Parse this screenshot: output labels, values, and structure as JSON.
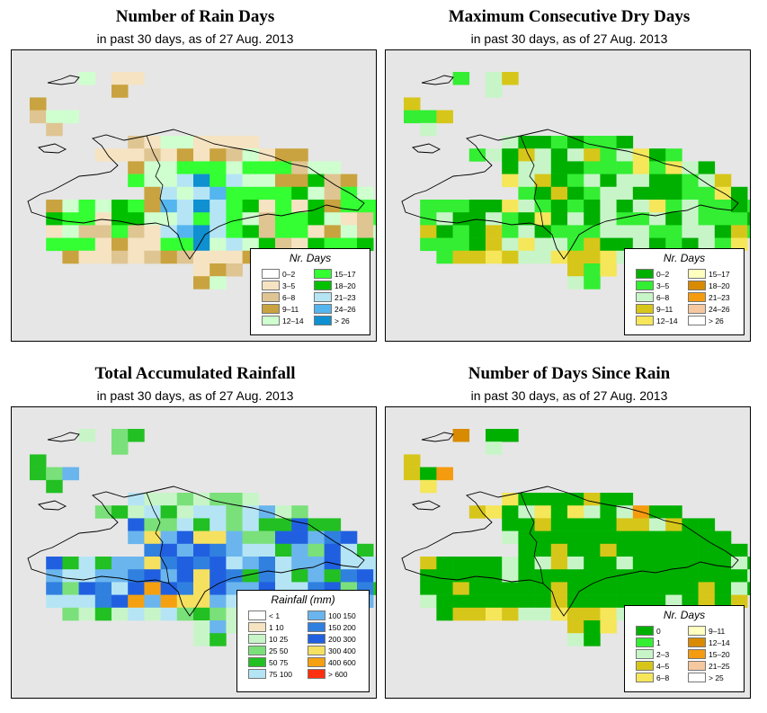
{
  "panels": [
    {
      "title": "Number of Rain Days",
      "subtitle": "in past 30 days, as of  27 Aug. 2013",
      "legend": {
        "title": "Nr. Days",
        "items": [
          {
            "label": "0–2",
            "color": "#ffffff"
          },
          {
            "label": "3–5",
            "color": "#f5e3c2"
          },
          {
            "label": "6–8",
            "color": "#dfc592"
          },
          {
            "label": "9–11",
            "color": "#c9a33f"
          },
          {
            "label": "12–14",
            "color": "#cfffcf"
          },
          {
            "label": "15–17",
            "color": "#33ff33"
          },
          {
            "label": "18–20",
            "color": "#00c000"
          },
          {
            "label": "21–23",
            "color": "#b5e5f5"
          },
          {
            "label": "24–26",
            "color": "#55b5ee"
          },
          {
            "label": "> 26",
            "color": "#0f90d0"
          }
        ]
      }
    },
    {
      "title": "Maximum Consecutive Dry Days",
      "subtitle": "in past 30 days, as of  27 Aug. 2013",
      "legend": {
        "title": "Nr. Days",
        "items": [
          {
            "label": "0–2",
            "color": "#00b000"
          },
          {
            "label": "3–5",
            "color": "#33ee33"
          },
          {
            "label": "6–8",
            "color": "#c8f5c8"
          },
          {
            "label": "9–11",
            "color": "#d7c61a"
          },
          {
            "label": "12–14",
            "color": "#f5e65a"
          },
          {
            "label": "15–17",
            "color": "#ffffc0"
          },
          {
            "label": "18–20",
            "color": "#d88a00"
          },
          {
            "label": "21–23",
            "color": "#f59b10"
          },
          {
            "label": "24–26",
            "color": "#f5c8a0"
          },
          {
            "label": "> 26",
            "color": "#ffffff"
          }
        ]
      }
    },
    {
      "title": "Total Accumulated Rainfall",
      "subtitle": "in past 30 days, as of  27 Aug. 2013",
      "legend": {
        "title": "Rainfall (mm)",
        "items": [
          {
            "label": "< 1",
            "color": "#ffffff"
          },
          {
            "label": "1    10",
            "color": "#f5e3c2"
          },
          {
            "label": "10    25",
            "color": "#c8f5c8"
          },
          {
            "label": "25    50",
            "color": "#7ae07a"
          },
          {
            "label": "50    75",
            "color": "#22c022"
          },
          {
            "label": "75  100",
            "color": "#b5e5f5"
          },
          {
            "label": "100  150",
            "color": "#6ab5ee"
          },
          {
            "label": "150  200",
            "color": "#3080e0"
          },
          {
            "label": "200  300",
            "color": "#2060e0"
          },
          {
            "label": "300  400",
            "color": "#f5e060"
          },
          {
            "label": "400  600",
            "color": "#f5a010"
          },
          {
            "label": "> 600",
            "color": "#ff3010"
          }
        ]
      }
    },
    {
      "title": "Number of Days Since Rain",
      "subtitle": "in past 30 days, as of  27 Aug. 2013",
      "legend": {
        "title": "Nr. Days",
        "items": [
          {
            "label": "0",
            "color": "#00b000"
          },
          {
            "label": "1",
            "color": "#33ee33"
          },
          {
            "label": "2–3",
            "color": "#c8f5c8"
          },
          {
            "label": "4–5",
            "color": "#d7c61a"
          },
          {
            "label": "6–8",
            "color": "#f5e65a"
          },
          {
            "label": "9–11",
            "color": "#ffffc0"
          },
          {
            "label": "12–14",
            "color": "#d88a00"
          },
          {
            "label": "15–20",
            "color": "#f59b10"
          },
          {
            "label": "21–25",
            "color": "#f5c8a0"
          },
          {
            "label": "> 25",
            "color": "#ffffff"
          }
        ]
      }
    }
  ]
}
